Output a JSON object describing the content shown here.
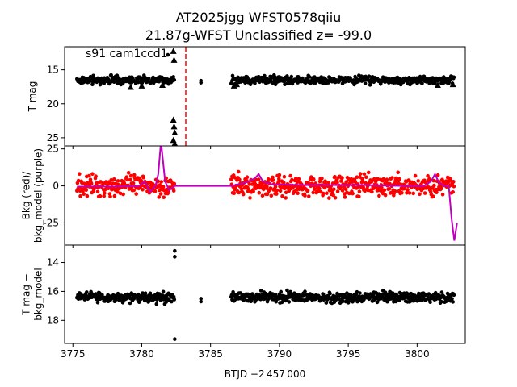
{
  "title": {
    "line1": "AT2025jgg  WFST0578qiiu",
    "line2": "21.87g-WFST Unclassified z= -99.0"
  },
  "xlabel": "BTJD −2 457 000",
  "colors": {
    "points": "#000000",
    "bkg": "#ff0000",
    "model": "#bf00bf",
    "marker_line": "#ff0000"
  },
  "chart_data": [
    {
      "type": "scatter",
      "panel": "top",
      "ylabel": "T mag",
      "annotation": "s91 cam1ccd1",
      "xlim": [
        3774.4,
        3803.5
      ],
      "ylim": [
        26.2,
        11.6
      ],
      "y_inverted": true,
      "xticks": [
        3775,
        3780,
        3785,
        3790,
        3795,
        3800
      ],
      "yticks": [
        15,
        20,
        25
      ],
      "vline_x": 3783.2,
      "series": [
        {
          "marker": "circle",
          "segments": [
            {
              "x": [
                3775.3,
                3782.4
              ],
              "y": 16.5,
              "spread": 0.4
            },
            {
              "x": [
                3786.5,
                3802.7
              ],
              "y": 16.5,
              "spread": 0.4
            }
          ]
        },
        {
          "marker": "triangle",
          "points": [
            {
              "x": 3782.3,
              "y": 12.3
            },
            {
              "x": 3782.35,
              "y": 13.6
            },
            {
              "x": 3782.3,
              "y": 22.4
            },
            {
              "x": 3782.35,
              "y": 23.4
            },
            {
              "x": 3782.4,
              "y": 24.3
            },
            {
              "x": 3782.3,
              "y": 25.4
            },
            {
              "x": 3782.4,
              "y": 25.9
            },
            {
              "x": 3779.2,
              "y": 17.6
            },
            {
              "x": 3780.0,
              "y": 17.4
            },
            {
              "x": 3786.9,
              "y": 17.2
            },
            {
              "x": 3801.5,
              "y": 17.3
            },
            {
              "x": 3802.6,
              "y": 17.2
            },
            {
              "x": 3781.5,
              "y": 17.3
            },
            {
              "x": 3786.7,
              "y": 17.4
            }
          ]
        },
        {
          "marker": "circle",
          "points": [
            {
              "x": 3781.9,
              "y": 12.8
            },
            {
              "x": 3784.3,
              "y": 16.6
            },
            {
              "x": 3784.3,
              "y": 16.9
            }
          ]
        }
      ]
    },
    {
      "type": "line",
      "panel": "middle",
      "ylabel": "Bkg (red)/\nbkg_model (purple)",
      "xlim": [
        3774.4,
        3803.5
      ],
      "ylim": [
        -40,
        27
      ],
      "yticks": [
        25,
        0,
        -25
      ],
      "series": [
        {
          "marker": "circle",
          "segments": [
            {
              "x": [
                3775.3,
                3782.4
              ],
              "y": 0,
              "spread": 5
            },
            {
              "x": [
                3786.5,
                3802.7
              ],
              "y": 0,
              "spread": 5
            }
          ]
        },
        {
          "marker": "line",
          "x": [
            3775.3,
            3778,
            3779.8,
            3780.2,
            3780.6,
            3781.0,
            3781.2,
            3781.4,
            3781.7,
            3782.0,
            3782.4,
            3784.0,
            3786.5,
            3787.5,
            3788.2,
            3788.5,
            3788.8,
            3789.5,
            3792,
            3796,
            3799,
            3800.5,
            3801.0,
            3801.3,
            3801.6,
            3802.0,
            3802.3,
            3802.5,
            3802.7,
            3802.9
          ],
          "y": [
            -0.5,
            -0.5,
            0,
            3,
            -4,
            0,
            8,
            30,
            3,
            -3,
            0,
            0,
            0,
            2,
            5,
            8,
            3,
            1,
            0.5,
            0.5,
            0,
            0,
            3,
            8,
            2,
            0,
            0,
            -22,
            -37,
            -25
          ]
        }
      ]
    },
    {
      "type": "scatter",
      "panel": "bottom",
      "ylabel": "T mag −\nbkg_model",
      "xlim": [
        3774.4,
        3803.5
      ],
      "ylim": [
        19.6,
        12.8
      ],
      "y_inverted": true,
      "yticks": [
        14,
        16,
        18
      ],
      "series": [
        {
          "marker": "circle",
          "segments": [
            {
              "x": [
                3775.3,
                3782.4
              ],
              "y": 16.4,
              "spread": 0.25
            },
            {
              "x": [
                3786.5,
                3802.7
              ],
              "y": 16.4,
              "spread": 0.25
            }
          ]
        },
        {
          "marker": "circle",
          "points": [
            {
              "x": 3782.4,
              "y": 13.2
            },
            {
              "x": 3782.4,
              "y": 13.6
            },
            {
              "x": 3782.4,
              "y": 19.3
            },
            {
              "x": 3784.3,
              "y": 16.5
            },
            {
              "x": 3784.3,
              "y": 16.7
            }
          ]
        }
      ]
    }
  ]
}
